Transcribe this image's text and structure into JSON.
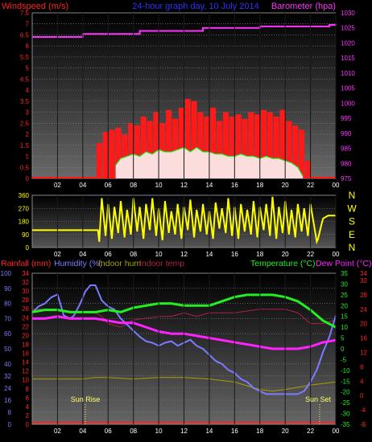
{
  "header": {
    "left_label": "Windspeed (m/s)",
    "title": "24-hour graph day, 10 July 2014",
    "right_label": "Barometer (hpa)"
  },
  "direction_labels": [
    "N",
    "W",
    "S",
    "E",
    "N"
  ],
  "bottom_header": {
    "rainfall": "Rainfall (mm)",
    "humidity": "Humidity (%)",
    "indoor_hum": "Indoor hum",
    "indoor_temp": "Indoor temp",
    "temperature": "Temperature (°C)",
    "dew_point": "Dew Point (°C)"
  },
  "annotations": {
    "sunrise": "Sun Rise",
    "sunset": "Sun Set"
  },
  "colors": {
    "wind": "#ff1a1a",
    "gust_fill": "#ffffff",
    "gust_line": "#22ee22",
    "baro": "#ff33ff",
    "dir": "#ffff00",
    "rain": "#ff2222",
    "hum": "#7b7bff",
    "inhum": "#a8a000",
    "intemp": "#aa2244",
    "temp": "#22ee22",
    "dew": "#ff22ff"
  },
  "chart_data": [
    {
      "type": "bar",
      "title": "24-hour graph day, 10 July 2014",
      "ylabel": "Windspeed (m/s)",
      "y2label": "Barometer (hpa)",
      "x_ticks": [
        "02",
        "04",
        "06",
        "08",
        "10",
        "12",
        "14",
        "16",
        "18",
        "20",
        "22",
        "00"
      ],
      "xlim": [
        0,
        24
      ],
      "ylim": [
        0,
        7.5
      ],
      "y_ticks": [
        "0",
        "0.5",
        "1",
        "1.5",
        "2",
        "2.5",
        "3",
        "3.5",
        "4",
        "4.5",
        "5",
        "5.5",
        "6",
        "6.5",
        "7",
        "7.5"
      ],
      "y2lim": [
        975,
        1030
      ],
      "y2_ticks": [
        "975",
        "980",
        "985",
        "990",
        "995",
        "1000",
        "1005",
        "1010",
        "1015",
        "1020",
        "1025",
        "1030"
      ],
      "series": [
        {
          "name": "Windspeed (m/s)",
          "type": "bar",
          "x": [
            5.3,
            5.8,
            6.3,
            6.8,
            7.3,
            7.8,
            8.3,
            8.8,
            9.3,
            9.8,
            10.3,
            10.8,
            11.3,
            11.8,
            12.3,
            12.8,
            13.3,
            13.8,
            14.3,
            14.8,
            15.3,
            15.8,
            16.3,
            16.8,
            17.3,
            17.8,
            18.3,
            18.8,
            19.3,
            19.8,
            20.3,
            20.8,
            21.3,
            21.8
          ],
          "values": [
            1.6,
            2.1,
            2.2,
            2.3,
            2.0,
            2.5,
            2.4,
            2.8,
            2.6,
            3.0,
            2.5,
            3.1,
            2.7,
            3.2,
            3.6,
            3.5,
            3.0,
            2.8,
            3.2,
            2.6,
            3.0,
            2.8,
            2.9,
            2.7,
            3.0,
            2.9,
            3.1,
            3.0,
            2.8,
            3.1,
            2.6,
            2.4,
            2.2,
            0.8
          ]
        },
        {
          "name": "Gust",
          "type": "area",
          "x": [
            6.6,
            7.0,
            7.5,
            8.0,
            8.5,
            9.0,
            9.5,
            10.0,
            10.5,
            11.0,
            11.5,
            12.0,
            12.5,
            13.0,
            13.5,
            14.0,
            14.5,
            15.0,
            15.5,
            16.0,
            16.5,
            17.0,
            17.5,
            18.0,
            18.5,
            19.0,
            19.5,
            20.0,
            20.5,
            21.0,
            21.4
          ],
          "values": [
            0.6,
            0.9,
            1.0,
            1.1,
            1.0,
            1.2,
            1.1,
            1.3,
            1.2,
            1.2,
            1.3,
            1.4,
            1.2,
            1.4,
            1.2,
            1.2,
            1.1,
            1.1,
            1.0,
            1.0,
            1.1,
            1.0,
            1.0,
            0.9,
            1.0,
            0.9,
            0.9,
            0.8,
            0.7,
            0.5,
            0.1
          ]
        },
        {
          "name": "Barometer (hpa)",
          "type": "line",
          "axis": "y2",
          "x": [
            0,
            3.5,
            4.0,
            5.5,
            8.5,
            9.0,
            13.5,
            18.0,
            19.5,
            23.5,
            24
          ],
          "values": [
            1022,
            1022,
            1023,
            1023,
            1024,
            1024,
            1025,
            1025.5,
            1025.5,
            1026,
            1026.3
          ]
        }
      ]
    },
    {
      "type": "line",
      "ylabel": "Wind direction",
      "x_ticks": [
        "02",
        "04",
        "06",
        "08",
        "10",
        "12",
        "14",
        "16",
        "18",
        "20",
        "22",
        "00"
      ],
      "xlim": [
        0,
        24
      ],
      "ylim": [
        0,
        360
      ],
      "y_ticks": [
        "0",
        "90",
        "180",
        "270",
        "360"
      ],
      "series": [
        {
          "name": "Wind direction (°)",
          "x": [
            0,
            5.2,
            5.3,
            5.5,
            5.8,
            6.0,
            6.3,
            6.5,
            6.8,
            7.0,
            7.3,
            7.5,
            7.8,
            8.0,
            8.3,
            8.5,
            8.8,
            9.0,
            9.3,
            9.5,
            9.8,
            10.0,
            10.3,
            10.5,
            10.8,
            11.0,
            11.3,
            11.5,
            11.8,
            12.0,
            12.3,
            12.5,
            12.8,
            13.0,
            13.3,
            13.5,
            13.8,
            14.0,
            14.3,
            14.5,
            14.8,
            15.0,
            15.3,
            15.5,
            15.8,
            16.0,
            16.3,
            16.5,
            16.8,
            17.0,
            17.3,
            17.5,
            17.8,
            18.0,
            18.3,
            18.5,
            18.8,
            19.0,
            19.3,
            19.5,
            19.8,
            20.0,
            20.3,
            20.5,
            20.8,
            21.0,
            21.3,
            21.5,
            21.8,
            22.0,
            22.5,
            22.6,
            22.9,
            23.0,
            23.4,
            24
          ],
          "values": [
            120,
            120,
            40,
            340,
            80,
            300,
            60,
            280,
            100,
            320,
            70,
            260,
            90,
            340,
            110,
            280,
            60,
            300,
            120,
            340,
            80,
            270,
            50,
            320,
            100,
            250,
            90,
            300,
            60,
            280,
            120,
            330,
            70,
            260,
            110,
            300,
            90,
            250,
            60,
            310,
            130,
            270,
            100,
            340,
            80,
            280,
            60,
            300,
            110,
            260,
            90,
            320,
            70,
            280,
            120,
            300,
            80,
            350,
            60,
            280,
            100,
            320,
            90,
            260,
            70,
            300,
            110,
            270,
            80,
            300,
            40,
            60,
            170,
            200,
            220,
            220
          ]
        }
      ]
    },
    {
      "type": "line",
      "x_ticks": [
        "02",
        "04",
        "06",
        "08",
        "10",
        "12",
        "14",
        "16",
        "18",
        "20",
        "22",
        "00"
      ],
      "xlim": [
        0,
        24
      ],
      "y_ticks_humidity": [
        "0",
        "8",
        "16",
        "24",
        "32",
        "40",
        "50",
        "60",
        "70",
        "80",
        "90",
        "100"
      ],
      "y_ticks_rain": [
        "0",
        "2",
        "4",
        "6",
        "8",
        "10",
        "12",
        "14",
        "16",
        "18",
        "20",
        "22",
        "24",
        "26",
        "28",
        "30",
        "32",
        "34"
      ],
      "y_ticks_temp": [
        "-35",
        "-30",
        "-25",
        "-20",
        "-15",
        "-10",
        "-5",
        "0",
        "5",
        "10",
        "15",
        "20",
        "25",
        "30",
        "35"
      ],
      "y_ticks_intemp": [
        "-8",
        "-4",
        "0",
        "4",
        "8",
        "12",
        "16",
        "20",
        "24",
        "28",
        "32",
        "34"
      ],
      "ylim_humidity": [
        0,
        100
      ],
      "ylim_temp": [
        -35,
        35
      ],
      "series": [
        {
          "name": "Humidity (%)",
          "axis": "humidity",
          "x": [
            0,
            0.5,
            1.0,
            1.5,
            2.0,
            2.5,
            3.0,
            3.3,
            3.8,
            4.2,
            4.6,
            5.0,
            5.5,
            6.0,
            6.5,
            7.0,
            7.5,
            8.0,
            8.5,
            9.0,
            9.5,
            10.0,
            10.5,
            11.0,
            11.5,
            12.0,
            12.5,
            13.0,
            13.5,
            14.0,
            14.5,
            15.0,
            15.5,
            16.0,
            16.5,
            17.0,
            17.5,
            18.0,
            18.5,
            19.0,
            19.5,
            20.0,
            20.5,
            21.0,
            21.5,
            22.0,
            22.5,
            23.0,
            23.5,
            24
          ],
          "values": [
            74,
            78,
            80,
            84,
            86,
            72,
            70,
            72,
            80,
            88,
            92,
            92,
            82,
            78,
            76,
            70,
            66,
            62,
            58,
            55,
            54,
            52,
            54,
            55,
            52,
            54,
            56,
            52,
            50,
            46,
            42,
            40,
            36,
            34,
            30,
            28,
            24,
            22,
            20,
            20,
            20,
            20,
            20,
            20,
            22,
            28,
            36,
            48,
            58,
            72
          ]
        },
        {
          "name": "Indoor hum",
          "axis": "humidity",
          "x": [
            0,
            2,
            4,
            5,
            6,
            8,
            10,
            12,
            14,
            16,
            18,
            19,
            20,
            22,
            24
          ],
          "values": [
            30,
            30,
            30,
            31,
            31,
            30,
            31,
            31,
            30,
            28,
            23,
            22,
            23,
            26,
            28
          ]
        },
        {
          "name": "Indoor temp",
          "axis": "intemp",
          "x": [
            0,
            2,
            4,
            5,
            5.5,
            6,
            7,
            8,
            10,
            11,
            12,
            13,
            14,
            16,
            18,
            20,
            21,
            22,
            23,
            24
          ],
          "values": [
            24,
            24,
            23,
            23,
            22,
            20,
            19,
            21,
            22,
            22,
            23,
            22,
            23,
            23,
            24,
            24,
            23,
            20,
            20,
            21
          ]
        },
        {
          "name": "Temperature (°C)",
          "axis": "temp",
          "x": [
            0,
            1,
            2,
            3,
            4,
            5,
            6,
            7,
            8,
            9,
            10,
            11,
            12,
            13,
            14,
            15,
            16,
            17,
            18,
            19,
            20,
            21,
            22,
            23,
            24
          ],
          "values": [
            17,
            18,
            18,
            17,
            17,
            17,
            18,
            17,
            19,
            20,
            21,
            21,
            20,
            20,
            20,
            22,
            24,
            25,
            25,
            25,
            24,
            22,
            18,
            13,
            10
          ]
        },
        {
          "name": "Dew Point (°C)",
          "axis": "temp",
          "x": [
            0,
            1,
            2,
            3,
            4,
            5,
            6,
            7,
            8,
            9,
            10,
            11,
            12,
            13,
            14,
            15,
            16,
            17,
            18,
            19,
            20,
            21,
            22,
            23,
            24
          ],
          "values": [
            14,
            14,
            15,
            14,
            14,
            14,
            13,
            12,
            12,
            10,
            8,
            7,
            7,
            6,
            5,
            4,
            3,
            2,
            1,
            0,
            0,
            0,
            1,
            3,
            4
          ]
        },
        {
          "name": "Rainfall (mm)",
          "axis": "rain",
          "x": [
            0,
            24
          ],
          "values": [
            0,
            0
          ]
        }
      ]
    }
  ]
}
